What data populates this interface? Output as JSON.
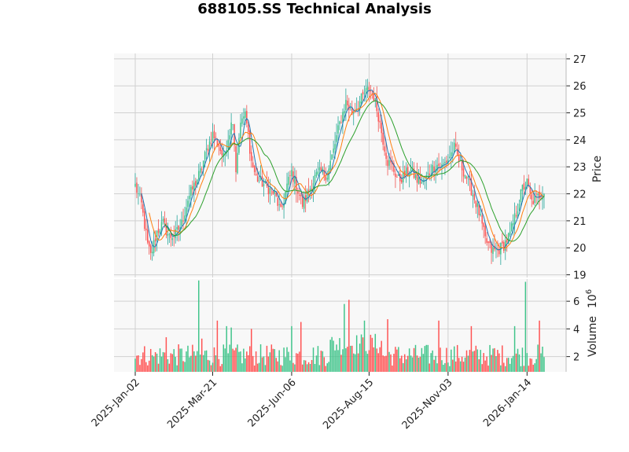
{
  "chart_data": [
    {
      "type": "candlestick",
      "title": "688105.SS Technical Analysis",
      "ylabel": "Price",
      "ylim": [
        18.9,
        27.2
      ],
      "yticks": [
        19,
        20,
        21,
        22,
        23,
        24,
        25,
        26,
        27
      ],
      "xticks": [
        "2025-Jan-02",
        "2025-Mar-21",
        "2025-Jun-06",
        "2025-Aug-15",
        "2025-Nov-03",
        "2026-Jan-14"
      ],
      "xtick_index": [
        0,
        50,
        101,
        151,
        202,
        253
      ],
      "n_bars": 265,
      "grid": true,
      "colors": {
        "up": "#26a69a",
        "up_fill": "#3fc48a",
        "down": "#ef5350",
        "down_fill": "#ff5252",
        "ma_short": "#1f77b4",
        "ma_mid": "#ff7f0e",
        "ma_long": "#2ca02c",
        "face": "#f8f8f8",
        "grid": "#d0d0d0"
      },
      "close_path": [
        [
          0,
          22.3
        ],
        [
          4,
          21.6
        ],
        [
          8,
          20.1
        ],
        [
          10,
          19.7
        ],
        [
          14,
          20.6
        ],
        [
          18,
          20.9
        ],
        [
          22,
          20.4
        ],
        [
          26,
          20.5
        ],
        [
          30,
          20.9
        ],
        [
          34,
          21.8
        ],
        [
          38,
          22.3
        ],
        [
          42,
          22.8
        ],
        [
          46,
          23.6
        ],
        [
          50,
          24.2
        ],
        [
          54,
          23.8
        ],
        [
          57,
          23.3
        ],
        [
          60,
          24.1
        ],
        [
          63,
          24.8
        ],
        [
          64,
          23.9
        ],
        [
          65,
          22.9
        ],
        [
          67,
          24.2
        ],
        [
          69,
          24.8
        ],
        [
          71,
          24.9
        ],
        [
          73,
          24.2
        ],
        [
          75,
          23.2
        ],
        [
          78,
          22.6
        ],
        [
          82,
          22.4
        ],
        [
          86,
          22.2
        ],
        [
          90,
          22.0
        ],
        [
          94,
          21.3
        ],
        [
          98,
          22.3
        ],
        [
          101,
          22.8
        ],
        [
          104,
          22.3
        ],
        [
          108,
          21.6
        ],
        [
          112,
          22.1
        ],
        [
          116,
          22.6
        ],
        [
          120,
          22.8
        ],
        [
          124,
          22.7
        ],
        [
          128,
          23.6
        ],
        [
          132,
          24.6
        ],
        [
          136,
          25.4
        ],
        [
          140,
          25.0
        ],
        [
          144,
          25.3
        ],
        [
          148,
          25.7
        ],
        [
          151,
          25.9
        ],
        [
          154,
          25.6
        ],
        [
          157,
          24.9
        ],
        [
          160,
          24.0
        ],
        [
          163,
          23.2
        ],
        [
          166,
          23.0
        ],
        [
          170,
          22.5
        ],
        [
          174,
          22.7
        ],
        [
          178,
          22.9
        ],
        [
          182,
          22.5
        ],
        [
          186,
          22.4
        ],
        [
          190,
          22.8
        ],
        [
          194,
          23.1
        ],
        [
          198,
          23.0
        ],
        [
          202,
          23.3
        ],
        [
          206,
          23.7
        ],
        [
          210,
          23.1
        ],
        [
          214,
          22.6
        ],
        [
          218,
          22.0
        ],
        [
          222,
          21.3
        ],
        [
          226,
          20.3
        ],
        [
          230,
          19.9
        ],
        [
          234,
          19.9
        ],
        [
          238,
          20.1
        ],
        [
          242,
          20.5
        ],
        [
          246,
          21.3
        ],
        [
          250,
          22.2
        ],
        [
          253,
          22.4
        ],
        [
          256,
          21.7
        ],
        [
          260,
          21.9
        ],
        [
          264,
          22.1
        ]
      ],
      "volume": {
        "ylabel": "Volume",
        "unit": "10^6",
        "ylim": [
          0.9,
          7.6
        ],
        "yticks": [
          2,
          4,
          6
        ],
        "spikes": [
          [
            12,
            2.0
          ],
          [
            20,
            3.4
          ],
          [
            41,
            7.5
          ],
          [
            43,
            3.3
          ],
          [
            53,
            4.6
          ],
          [
            59,
            4.2
          ],
          [
            62,
            4.1
          ],
          [
            75,
            4.0
          ],
          [
            101,
            4.2
          ],
          [
            107,
            4.5
          ],
          [
            135,
            5.8
          ],
          [
            138,
            6.1
          ],
          [
            148,
            4.6
          ],
          [
            163,
            4.7
          ],
          [
            196,
            4.6
          ],
          [
            217,
            4.2
          ],
          [
            245,
            4.2
          ],
          [
            252,
            7.4
          ],
          [
            261,
            4.6
          ]
        ]
      }
    }
  ]
}
